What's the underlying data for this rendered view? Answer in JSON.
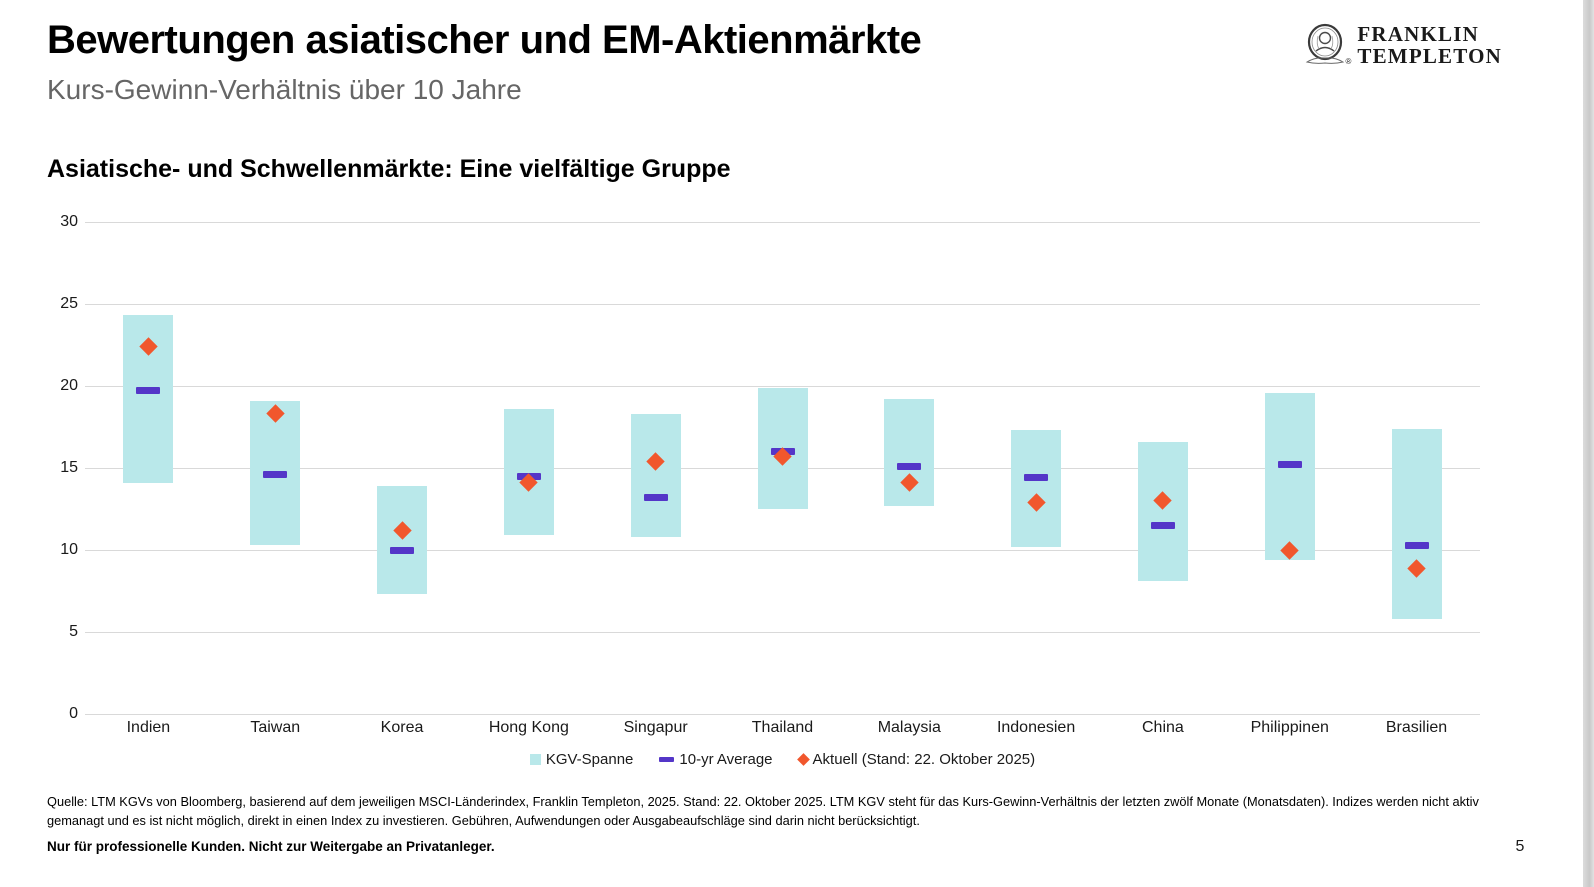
{
  "page": {
    "title": "Bewertungen asiatischer und EM-Aktienmärkte",
    "subtitle": "Kurs-Gewinn-Verhältnis über 10 Jahre",
    "page_number": "5"
  },
  "logo": {
    "line1": "FRANKLIN",
    "line2": "TEMPLETON",
    "registered_mark": "®",
    "icon": "franklin-portrait-icon"
  },
  "section": {
    "heading": "Asiatische- und Schwellenmärkte: Eine vielfältige Gruppe"
  },
  "chart_data": {
    "type": "bar",
    "subtype": "floating-range-bar-with-markers",
    "title": "Asiatische- und Schwellenmärkte: Eine vielfältige Gruppe",
    "xlabel": "",
    "ylabel": "",
    "ylim": [
      0,
      30
    ],
    "yticks": [
      30,
      25,
      20,
      15,
      10,
      5,
      0
    ],
    "grid": true,
    "legend_position": "bottom",
    "categories": [
      "Indien",
      "Taiwan",
      "Korea",
      "Hong Kong",
      "Singapur",
      "Thailand",
      "Malaysia",
      "Indonesien",
      "China",
      "Philippinen",
      "Brasilien"
    ],
    "series": [
      {
        "name": "KGV-Spanne",
        "marker": "range-bar",
        "color": "#b9e8ea",
        "low": [
          14.1,
          10.3,
          7.3,
          10.9,
          10.8,
          12.5,
          12.7,
          10.2,
          8.1,
          9.4,
          5.8
        ],
        "high": [
          24.3,
          19.1,
          13.9,
          18.6,
          18.3,
          19.9,
          19.2,
          17.3,
          16.6,
          19.6,
          17.4
        ]
      },
      {
        "name": "10-yr Average",
        "marker": "dash",
        "color": "#5436c8",
        "values": [
          19.7,
          14.6,
          10.0,
          14.5,
          13.2,
          16.0,
          15.1,
          14.4,
          11.5,
          15.2,
          10.3
        ]
      },
      {
        "name": "Aktuell (Stand: 22. Oktober 2025)",
        "marker": "diamond",
        "color": "#f1572d",
        "values": [
          22.4,
          18.3,
          11.2,
          14.1,
          15.4,
          15.7,
          14.1,
          12.9,
          13.0,
          10.0,
          8.9
        ]
      }
    ]
  },
  "footnotes": {
    "source": "Quelle: LTM KGVs von Bloomberg, basierend auf dem jeweiligen MSCI-Länderindex, Franklin Templeton, 2025. Stand: 22. Oktober 2025. LTM KGV steht für das Kurs-Gewinn-Verhältnis der letzten zwölf Monate (Monatsdaten). Indizes werden nicht aktiv gemanagt und es ist nicht möglich, direkt in einen Index zu investieren. Gebühren, Aufwendungen oder Ausgabeaufschläge sind darin nicht berücksichtigt.",
    "disclaimer": "Nur für professionelle Kunden. Nicht zur Weitergabe an Privatanleger."
  }
}
